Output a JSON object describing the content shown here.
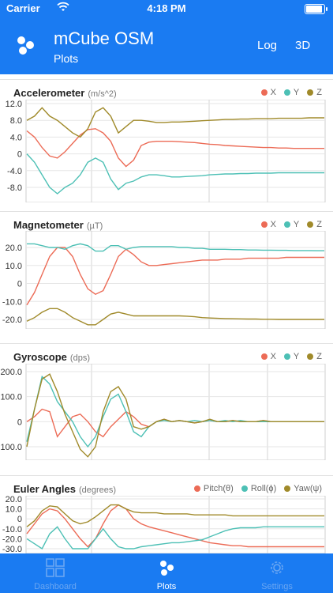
{
  "status_bar": {
    "carrier": "Carrier",
    "time": "4:18 PM"
  },
  "header": {
    "title": "mCube OSM",
    "subtitle": "Plots",
    "buttons": [
      "Log",
      "3D"
    ]
  },
  "colors": {
    "accent": "#1a7bf2",
    "series_red": "#ec6b56",
    "series_teal": "#4dc0b5",
    "series_olive": "#a08a2a"
  },
  "icons": {
    "logo": "three-dots-logo-icon",
    "dashboard": "dashboard-grid-icon",
    "plots": "three-dots-plots-icon",
    "settings": "gear-icon"
  },
  "tabs": [
    {
      "label": "Dashboard",
      "active": false
    },
    {
      "label": "Plots",
      "active": true
    },
    {
      "label": "Settings",
      "active": false
    }
  ],
  "chart_data": [
    {
      "type": "line",
      "title": "Accelerometer",
      "unit": "(m/s^2)",
      "yticks": [
        "12.0",
        "8.0",
        "4.0",
        "0",
        "-4.0",
        "-8.0"
      ],
      "ylim": [
        -10,
        12
      ],
      "grid": true,
      "legend": "top-right",
      "series": [
        {
          "name": "X",
          "color": "#ec6b56",
          "values": [
            5.5,
            4.0,
            1.5,
            -0.5,
            -1.0,
            0.5,
            2.5,
            4.5,
            5.8,
            6.0,
            5.0,
            3.0,
            -1.0,
            -3.0,
            -1.5,
            2.0,
            2.8,
            3.0,
            3.0,
            3.0,
            2.9,
            2.8,
            2.7,
            2.5,
            2.3,
            2.2,
            2.0,
            1.9,
            1.8,
            1.7,
            1.6,
            1.5,
            1.5,
            1.4,
            1.4,
            1.3,
            1.3,
            1.3,
            1.3,
            1.3
          ]
        },
        {
          "name": "Y",
          "color": "#4dc0b5",
          "values": [
            0.0,
            -2.0,
            -5.0,
            -8.0,
            -9.5,
            -8.0,
            -7.0,
            -5.0,
            -2.0,
            -1.0,
            -2.0,
            -6.0,
            -8.5,
            -7.0,
            -6.5,
            -5.5,
            -5.0,
            -5.0,
            -5.2,
            -5.5,
            -5.5,
            -5.4,
            -5.3,
            -5.2,
            -5.0,
            -4.9,
            -4.8,
            -4.8,
            -4.7,
            -4.7,
            -4.6,
            -4.6,
            -4.6,
            -4.5,
            -4.5,
            -4.5,
            -4.5,
            -4.5,
            -4.5,
            -4.5
          ]
        },
        {
          "name": "Z",
          "color": "#a08a2a",
          "values": [
            8.0,
            9.0,
            11.0,
            9.0,
            8.0,
            6.5,
            5.0,
            4.0,
            6.0,
            10.0,
            11.0,
            9.0,
            5.0,
            6.5,
            8.0,
            8.0,
            7.8,
            7.5,
            7.5,
            7.6,
            7.6,
            7.7,
            7.8,
            7.9,
            8.0,
            8.1,
            8.2,
            8.2,
            8.3,
            8.3,
            8.4,
            8.4,
            8.4,
            8.5,
            8.5,
            8.5,
            8.5,
            8.6,
            8.6,
            8.6
          ]
        }
      ]
    },
    {
      "type": "line",
      "title": "Magnetometer",
      "unit": "(µT)",
      "yticks": [
        "20.0",
        "10.0",
        "0",
        "-10.0",
        "-20.0"
      ],
      "ylim": [
        -28,
        26
      ],
      "grid": true,
      "legend": "top-right",
      "series": [
        {
          "name": "X",
          "color": "#ec6b56",
          "values": [
            -12.0,
            -5.0,
            5.0,
            15.0,
            20.0,
            20.0,
            15.0,
            5.0,
            -3.0,
            -6.0,
            -4.0,
            5.0,
            15.0,
            19.0,
            16.0,
            12.0,
            10.0,
            10.0,
            10.5,
            11.0,
            11.5,
            12.0,
            12.5,
            13.0,
            13.0,
            13.0,
            13.5,
            13.5,
            13.5,
            14.0,
            14.0,
            14.0,
            14.0,
            14.0,
            14.5,
            14.5,
            14.5,
            14.5,
            14.5,
            14.5
          ]
        },
        {
          "name": "Y",
          "color": "#4dc0b5",
          "values": [
            22.0,
            22.0,
            21.0,
            20.0,
            20.0,
            19.0,
            21.0,
            22.0,
            21.0,
            18.0,
            18.0,
            21.0,
            21.0,
            19.0,
            20.0,
            20.5,
            20.5,
            20.5,
            20.5,
            20.5,
            20.0,
            20.0,
            19.5,
            19.5,
            19.0,
            19.0,
            19.0,
            18.8,
            18.8,
            18.6,
            18.6,
            18.5,
            18.5,
            18.4,
            18.4,
            18.3,
            18.3,
            18.3,
            18.2,
            18.2
          ]
        },
        {
          "name": "Z",
          "color": "#a08a2a",
          "values": [
            -21.0,
            -19.0,
            -16.0,
            -14.0,
            -14.0,
            -16.0,
            -19.0,
            -21.0,
            -23.0,
            -23.0,
            -20.0,
            -17.0,
            -16.0,
            -17.0,
            -18.0,
            -18.0,
            -18.0,
            -18.0,
            -18.0,
            -18.0,
            -18.0,
            -18.2,
            -18.5,
            -19.0,
            -19.2,
            -19.4,
            -19.5,
            -19.6,
            -19.7,
            -19.8,
            -19.8,
            -19.9,
            -19.9,
            -20.0,
            -20.0,
            -20.0,
            -20.0,
            -20.0,
            -20.0,
            -20.0
          ]
        }
      ]
    },
    {
      "type": "line",
      "title": "Gyroscope",
      "unit": "(dps)",
      "yticks": [
        "200.0",
        "100.0",
        "0",
        "-100.0"
      ],
      "ylim": [
        -150,
        210
      ],
      "grid": true,
      "legend": "top-right",
      "series": [
        {
          "name": "X",
          "color": "#ec6b56",
          "values": [
            0,
            20,
            50,
            40,
            -60,
            -20,
            20,
            30,
            0,
            -40,
            -60,
            -20,
            10,
            40,
            20,
            -10,
            -20,
            0,
            10,
            0,
            5,
            0,
            -5,
            0,
            5,
            0,
            0,
            5,
            0,
            0,
            0,
            5,
            0,
            0,
            0,
            0,
            0,
            0,
            0,
            0
          ]
        },
        {
          "name": "Y",
          "color": "#4dc0b5",
          "values": [
            -80,
            50,
            180,
            150,
            80,
            40,
            0,
            -60,
            -100,
            -60,
            20,
            90,
            110,
            40,
            -40,
            -60,
            -20,
            0,
            5,
            0,
            5,
            0,
            5,
            0,
            5,
            0,
            5,
            0,
            5,
            0,
            0,
            0,
            0,
            0,
            0,
            0,
            0,
            0,
            0,
            0
          ]
        },
        {
          "name": "Z",
          "color": "#a08a2a",
          "values": [
            -100,
            50,
            170,
            190,
            120,
            30,
            -40,
            -110,
            -140,
            -100,
            40,
            120,
            140,
            90,
            -20,
            -30,
            -20,
            0,
            10,
            0,
            5,
            0,
            -5,
            0,
            10,
            0,
            0,
            5,
            0,
            0,
            0,
            5,
            0,
            0,
            0,
            0,
            0,
            0,
            0,
            0
          ]
        }
      ]
    },
    {
      "type": "line",
      "title": "Euler Angles",
      "unit": "(degrees)",
      "yticks": [
        "20.0",
        "10.0",
        "0",
        "-10.0",
        "-20.0",
        "-30.0"
      ],
      "ylim": [
        -30,
        22
      ],
      "grid": true,
      "legend": "top-right",
      "series": [
        {
          "name": "Pitch(θ)",
          "color": "#ec6b56",
          "values": [
            -15,
            -5,
            5,
            10,
            8,
            0,
            -10,
            -20,
            -28,
            -20,
            -5,
            8,
            14,
            10,
            0,
            -5,
            -8,
            -10,
            -12,
            -14,
            -16,
            -18,
            -20,
            -22,
            -24,
            -25,
            -26,
            -27,
            -27,
            -28,
            -28,
            -28,
            -28,
            -28,
            -28,
            -28,
            -28,
            -28,
            -28,
            -28
          ]
        },
        {
          "name": "Roll(ϕ)",
          "color": "#4dc0b5",
          "values": [
            -20,
            -25,
            -30,
            -15,
            -8,
            -20,
            -30,
            -32,
            -30,
            -20,
            -10,
            -20,
            -28,
            -32,
            -30,
            -28,
            -27,
            -26,
            -25,
            -24,
            -24,
            -23,
            -22,
            -21,
            -18,
            -15,
            -12,
            -10,
            -9,
            -9,
            -9,
            -8,
            -8,
            -8,
            -8,
            -8,
            -8,
            -8,
            -8,
            -8
          ]
        },
        {
          "name": "Yaw(ψ)",
          "color": "#a08a2a",
          "values": [
            -8,
            -2,
            8,
            13,
            12,
            5,
            -2,
            -5,
            -3,
            2,
            8,
            14,
            14,
            10,
            7,
            6,
            6,
            6,
            5,
            5,
            5,
            5,
            4,
            4,
            4,
            4,
            4,
            3,
            3,
            3,
            3,
            3,
            3,
            3,
            3,
            3,
            3,
            3,
            3,
            3
          ]
        }
      ]
    }
  ]
}
